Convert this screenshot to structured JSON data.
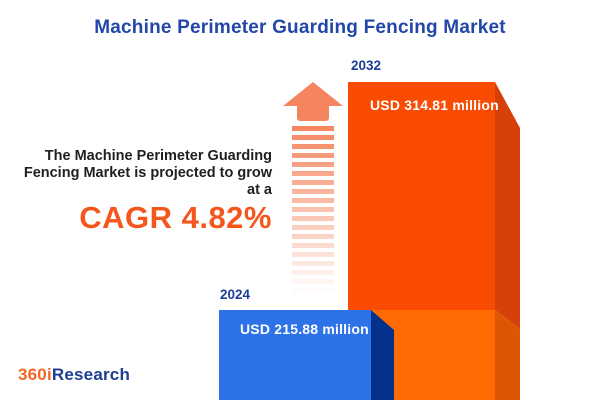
{
  "title": "Machine Perimeter Guarding Fencing Market",
  "projection": {
    "line1": "The Machine Perimeter Guarding",
    "line2": "Fencing Market is projected to grow",
    "line3": "at a",
    "cagr_label": "CAGR 4.82%"
  },
  "chart_data": {
    "type": "bar",
    "categories": [
      "2024",
      "2032"
    ],
    "values": [
      215.88,
      314.81
    ],
    "unit": "USD million",
    "value_labels": [
      "USD 215.88 million",
      "USD 314.81 million"
    ],
    "title": "Machine Perimeter Guarding Fencing Market",
    "annotations": [
      "CAGR 4.82%"
    ],
    "legend_position": "none",
    "grid": false,
    "style": "3d-bars, dashed growth arrow fading upward"
  },
  "bars": [
    {
      "year": "2024",
      "value_label": "USD 215.88 million",
      "face_color": "#2E72E8",
      "side_color": "#05308C"
    },
    {
      "year": "2032",
      "value_label": "USD 314.81 million",
      "face_color": "#F94B02",
      "side_color": "#D64009"
    }
  ],
  "colors": {
    "title_blue": "#2247A8",
    "year_label_blue": "#1B3F94",
    "body_text": "#1f1f1f",
    "cagr_orange": "#F4571D",
    "arrow_orange": "#F5855F",
    "bar_2032_face_lower": "#FF6A03",
    "bar_2032_side_lower": "#DC5603",
    "logo_orange": "#F26722",
    "logo_blue": "#1B3F94",
    "background": "#ffffff"
  },
  "logo": {
    "part1": "360i",
    "part2": "Research"
  }
}
